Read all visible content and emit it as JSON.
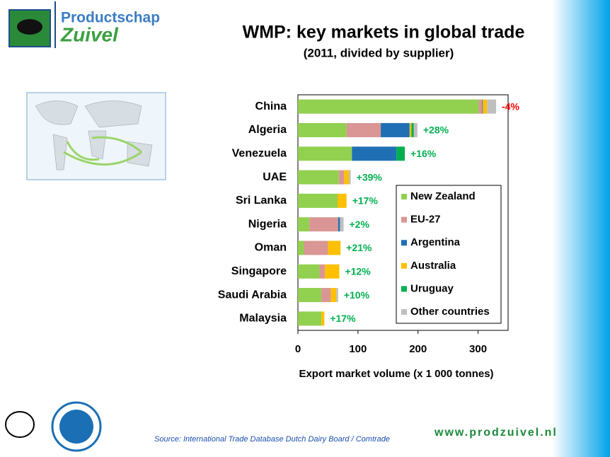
{
  "header": {
    "brand_top": "Productschap",
    "brand_bottom": "Zuivel"
  },
  "footer": {
    "source": "Source: International Trade Database Dutch Dairy Board / Comtrade",
    "website": "www.prodzuivel.nl"
  },
  "chart_data": {
    "type": "stacked_barh",
    "title": "WMP: key markets in global trade",
    "subtitle": "(2011, divided by supplier)",
    "x_label": "Export market volume (x 1 000 tonnes)",
    "categories": [
      "China",
      "Algeria",
      "Venezuela",
      "UAE",
      "Sri Lanka",
      "Nigeria",
      "Oman",
      "Singapore",
      "Saudi Arabia",
      "Malaysia"
    ],
    "annotations": [
      "-4%",
      "+28%",
      "+16%",
      "+39%",
      "+17%",
      "+2%",
      "+21%",
      "+12%",
      "+10%",
      "+17%"
    ],
    "annotation_colors": [
      "#ff0000",
      "#00b050",
      "#00b050",
      "#00b050",
      "#00b050",
      "#00b050",
      "#00b050",
      "#00b050",
      "#00b050",
      "#00b050"
    ],
    "series": [
      {
        "name": "New Zealand",
        "color": "#92d050",
        "values": [
          301,
          81,
          90,
          68,
          66,
          19,
          10,
          36,
          39,
          39
        ]
      },
      {
        "name": "EU-27",
        "color": "#d99694",
        "values": [
          6,
          57,
          0,
          9,
          0,
          48,
          40,
          9,
          16,
          0
        ]
      },
      {
        "name": "Argentina",
        "color": "#1f6fb5",
        "values": [
          1,
          48,
          74,
          0,
          0,
          3,
          0,
          0,
          0,
          0
        ]
      },
      {
        "name": "Australia",
        "color": "#ffc000",
        "values": [
          7,
          3,
          0,
          8,
          15,
          0,
          21,
          24,
          9,
          5
        ]
      },
      {
        "name": "Uruguay",
        "color": "#00b050",
        "values": [
          0,
          4,
          14,
          0,
          0,
          0,
          0,
          0,
          0,
          0
        ]
      },
      {
        "name": "Other countries",
        "color": "#bfbfbf",
        "values": [
          15,
          6,
          0,
          3,
          0,
          6,
          0,
          0,
          3,
          0
        ]
      }
    ],
    "xlim": [
      0,
      350
    ],
    "xticks": [
      0,
      100,
      200,
      300
    ],
    "legend": "inside-lower-right"
  }
}
